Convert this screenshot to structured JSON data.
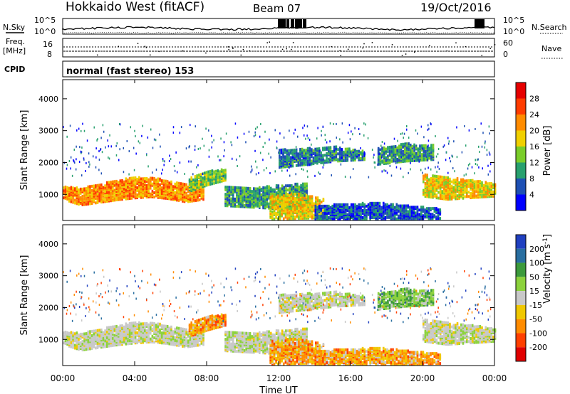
{
  "header": {
    "station": "Hokkaido West (fitACF)",
    "beam": "Beam 07",
    "date": "19/Oct/2016"
  },
  "noise_panel": {
    "left_label": "N.Sky",
    "left_ticks": [
      "10^5",
      "10^0"
    ],
    "right_ticks": [
      "10^5",
      "10^0"
    ],
    "right_label": "N.Search"
  },
  "freq_panel": {
    "left_label_line1": "Freq.",
    "left_label_line2": "[MHz]",
    "left_ticks": [
      "16",
      "8"
    ],
    "right_ticks": [
      "60",
      "0"
    ],
    "right_label": "Nave"
  },
  "cpid_panel": {
    "label": "CPID",
    "text": "normal (fast stereo) 153"
  },
  "time_axis": {
    "label": "Time UT",
    "ticks": [
      "00:00",
      "04:00",
      "08:00",
      "12:00",
      "16:00",
      "20:00",
      "00:00"
    ]
  },
  "range_axis": {
    "label": "Slant Range [km]",
    "ticks": [
      "1000",
      "2000",
      "3000",
      "4000"
    ],
    "ylim": [
      180,
      4600
    ]
  },
  "power_scale": {
    "label": "Power [dB]",
    "ticks": [
      "4",
      "8",
      "12",
      "16",
      "20",
      "24",
      "28"
    ],
    "colors": [
      "#0000ff",
      "#1e50b4",
      "#28a06e",
      "#7acd2a",
      "#f0d000",
      "#ff8c00",
      "#ff3c00",
      "#e60000"
    ]
  },
  "velocity_scale": {
    "label_main": "Velocity [m s",
    "label_sup": "-1",
    "label_close": "]",
    "ticks": [
      "200",
      "100",
      "50",
      "15",
      "-15",
      "-50",
      "-100",
      "-200"
    ],
    "colors": [
      "#2040c0",
      "#286ea0",
      "#3c9a3c",
      "#8cd23c",
      "#c8c8c8",
      "#f0c800",
      "#ff8c00",
      "#ff4000",
      "#e00000"
    ]
  },
  "chart_data": {
    "type": "heatmap",
    "x_unit_hours": [
      0,
      24
    ],
    "bands": [
      {
        "name": "",
        "t0": 0.0,
        "t1": 7.8,
        "r_low": [
          800,
          620,
          700,
          780,
          840,
          880,
          820,
          720,
          800
        ],
        "r_high": [
          1200,
          1150,
          1260,
          1400,
          1480,
          1500,
          1380,
          1300,
          1420
        ],
        "power": 22,
        "vel": "gray"
      },
      {
        "name": "",
        "t0": 7.0,
        "t1": 9.0,
        "r_low": [
          1050,
          1250,
          1400
        ],
        "r_high": [
          1500,
          1700,
          1750
        ],
        "power": 14,
        "vel": "orange"
      },
      {
        "name": "",
        "t0": 9.0,
        "t1": 13.6,
        "r_low": [
          600,
          550,
          500,
          520
        ],
        "r_high": [
          1200,
          1150,
          1250,
          1300
        ],
        "power": 10,
        "vel": "gray"
      },
      {
        "name": "",
        "t0": 11.5,
        "t1": 14.5,
        "r_low": [
          180,
          200,
          220
        ],
        "r_high": [
          900,
          1000,
          800
        ],
        "power": 18,
        "vel": "orange"
      },
      {
        "name": "",
        "t0": 12.0,
        "t1": 16.8,
        "r_low": [
          1800,
          1900,
          2000,
          2050
        ],
        "r_high": [
          2350,
          2400,
          2450,
          2300
        ],
        "power": 8,
        "vel": "gray"
      },
      {
        "name": "",
        "t0": 17.5,
        "t1": 20.6,
        "r_low": [
          1900,
          2000,
          2050
        ],
        "r_high": [
          2400,
          2550,
          2500
        ],
        "power": 10,
        "vel": "green"
      },
      {
        "name": "",
        "t0": 20.0,
        "t1": 24.0,
        "r_low": [
          900,
          800,
          850,
          900
        ],
        "r_high": [
          1600,
          1500,
          1400,
          1300
        ],
        "power": 18,
        "vel": "gray"
      },
      {
        "name": "",
        "t0": 14.0,
        "t1": 21.0,
        "r_low": [
          180,
          180,
          200
        ],
        "r_high": [
          600,
          700,
          500
        ],
        "power": 6,
        "vel": "orange"
      }
    ]
  }
}
